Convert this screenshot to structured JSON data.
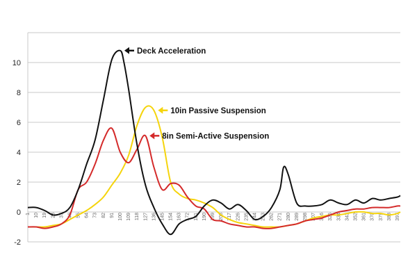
{
  "chart_data": {
    "type": "line",
    "title": "",
    "xlabel": "",
    "ylabel": "",
    "ylim": [
      -2,
      12
    ],
    "xlim": [
      1,
      400
    ],
    "yticks": [
      -2,
      0,
      2,
      4,
      6,
      8,
      10
    ],
    "xticks": [
      "1",
      "10",
      "19",
      "28",
      "37",
      "46",
      "55",
      "64",
      "73",
      "82",
      "91",
      "100",
      "109",
      "118",
      "127",
      "136",
      "145",
      "154",
      "163",
      "172",
      "181",
      "190",
      "199",
      "208",
      "217",
      "226",
      "235",
      "244",
      "253",
      "262",
      "271",
      "280",
      "289",
      "298",
      "307",
      "316",
      "325",
      "334",
      "343",
      "352",
      "361",
      "370",
      "379",
      "388",
      "397"
    ],
    "grid": "horizontal",
    "series": [
      {
        "name": "Deck Acceleration",
        "color": "#111111",
        "x": [
          1,
          10,
          19,
          28,
          37,
          46,
          55,
          64,
          73,
          82,
          91,
          100,
          104,
          109,
          118,
          127,
          136,
          145,
          154,
          163,
          172,
          181,
          190,
          199,
          208,
          217,
          226,
          235,
          244,
          253,
          262,
          271,
          275,
          280,
          289,
          298,
          307,
          316,
          325,
          334,
          343,
          352,
          361,
          370,
          379,
          388,
          397,
          400
        ],
        "y": [
          0.3,
          0.3,
          0.1,
          -0.2,
          -0.1,
          0.3,
          1.5,
          3.2,
          4.8,
          7.5,
          10.2,
          10.8,
          10.0,
          8.2,
          4.5,
          1.8,
          0.3,
          -0.8,
          -1.5,
          -0.8,
          -0.5,
          -0.3,
          0.4,
          0.8,
          0.6,
          0.2,
          0.5,
          0.1,
          -0.5,
          -0.3,
          0.3,
          1.5,
          3.0,
          2.5,
          0.6,
          0.4,
          0.4,
          0.5,
          0.8,
          0.6,
          0.5,
          0.8,
          0.6,
          0.9,
          0.8,
          0.9,
          1.0,
          1.1
        ]
      },
      {
        "name": "10in Passive Suspension",
        "color": "#f5d40c",
        "x": [
          1,
          10,
          19,
          28,
          37,
          46,
          55,
          64,
          73,
          82,
          91,
          100,
          109,
          118,
          127,
          136,
          145,
          154,
          163,
          172,
          181,
          190,
          199,
          208,
          217,
          226,
          235,
          244,
          253,
          262,
          271,
          280,
          289,
          298,
          307,
          316,
          325,
          334,
          343,
          352,
          361,
          370,
          379,
          388,
          397,
          400
        ],
        "y": [
          -1.0,
          -1.0,
          -1.0,
          -0.9,
          -0.8,
          -0.5,
          -0.2,
          0.1,
          0.5,
          1.0,
          1.8,
          2.6,
          3.8,
          5.8,
          7.0,
          6.8,
          5.0,
          2.0,
          1.2,
          0.9,
          0.8,
          0.6,
          0.3,
          -0.2,
          -0.5,
          -0.7,
          -0.8,
          -0.9,
          -1.0,
          -1.0,
          -1.0,
          -0.9,
          -0.8,
          -0.6,
          -0.4,
          -0.3,
          -0.2,
          -0.2,
          -0.1,
          0.0,
          0.0,
          -0.1,
          -0.1,
          -0.2,
          -0.1,
          0.0
        ]
      },
      {
        "name": "8in Semi-Active Suspension",
        "color": "#d42a2a",
        "x": [
          1,
          10,
          19,
          28,
          37,
          46,
          55,
          64,
          73,
          82,
          91,
          100,
          109,
          118,
          127,
          136,
          145,
          154,
          163,
          172,
          181,
          190,
          199,
          208,
          217,
          226,
          235,
          244,
          253,
          262,
          271,
          280,
          289,
          298,
          307,
          316,
          325,
          334,
          343,
          352,
          361,
          370,
          379,
          388,
          397,
          400
        ],
        "y": [
          -1.0,
          -1.0,
          -1.1,
          -1.0,
          -0.8,
          -0.2,
          1.5,
          2.0,
          3.2,
          4.8,
          5.6,
          4.0,
          3.3,
          4.2,
          5.1,
          3.0,
          1.5,
          1.9,
          1.8,
          1.0,
          0.4,
          0.2,
          -0.5,
          -0.6,
          -0.8,
          -0.9,
          -1.0,
          -1.0,
          -1.1,
          -1.1,
          -1.0,
          -0.9,
          -0.8,
          -0.6,
          -0.5,
          -0.4,
          -0.2,
          0.0,
          0.1,
          0.2,
          0.2,
          0.3,
          0.3,
          0.3,
          0.4,
          0.4
        ]
      }
    ],
    "annotations": [
      {
        "text": "Deck Acceleration",
        "series": "Deck Acceleration",
        "x": 100,
        "y": 10.8
      },
      {
        "text": "10in Passive Suspension",
        "series": "10in Passive Suspension",
        "x": 136,
        "y": 6.8
      },
      {
        "text": "8in Semi-Active Suspension",
        "series": "8in Semi-Active Suspension",
        "x": 127,
        "y": 5.1
      }
    ]
  }
}
